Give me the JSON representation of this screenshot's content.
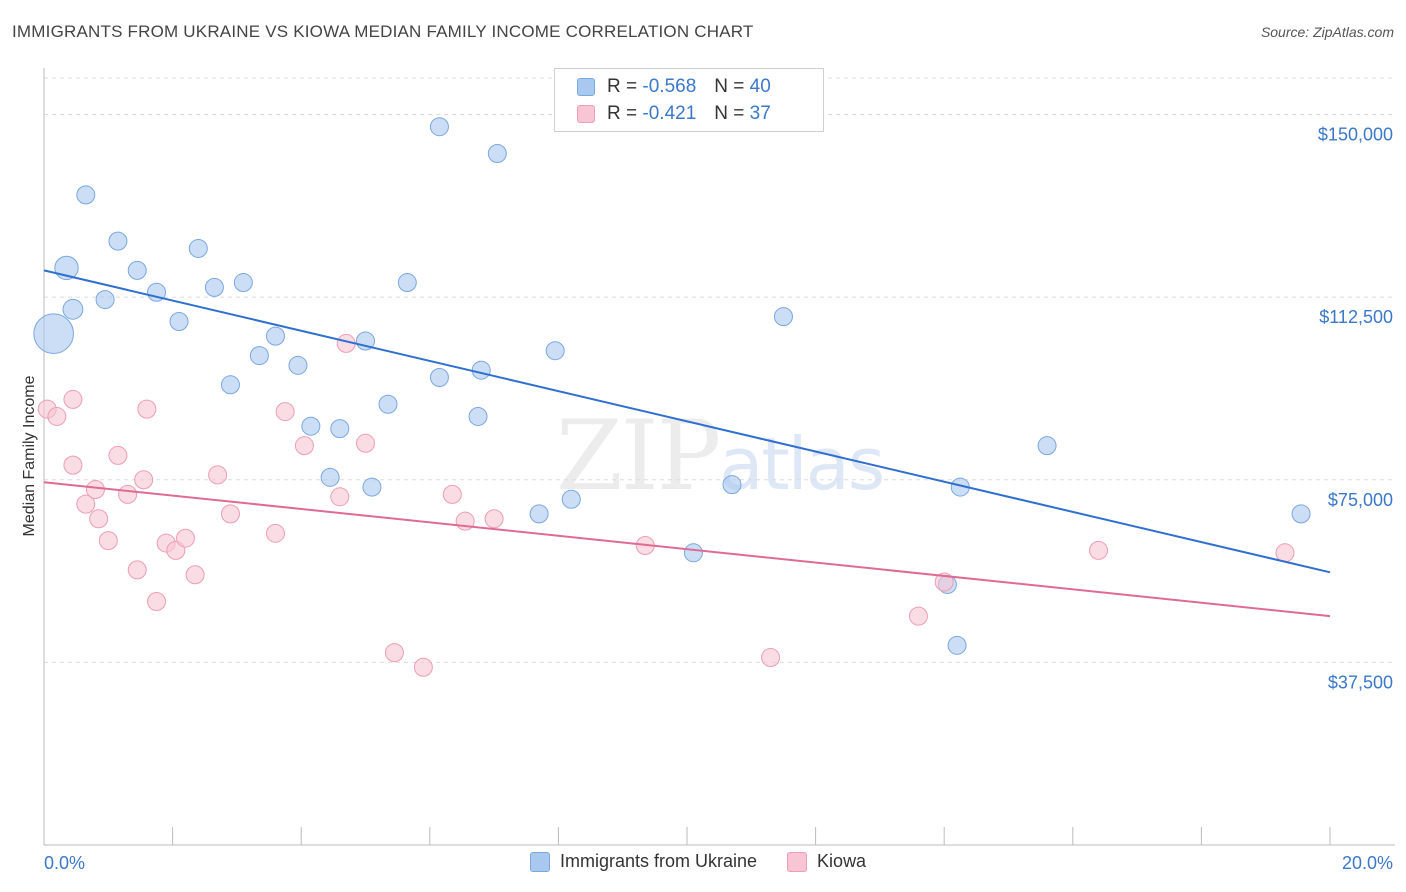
{
  "title": "IMMIGRANTS FROM UKRAINE VS KIOWA MEDIAN FAMILY INCOME CORRELATION CHART",
  "source": "Source: ZipAtlas.com",
  "watermark": {
    "zip": "ZIP",
    "atlas": "atlas"
  },
  "legend": {
    "rows": [
      {
        "r_label": "R =",
        "r_value": "-0.568",
        "n_label": "N =",
        "n_value": "40",
        "color": "#a9c8f0",
        "border": "#7aa7e0"
      },
      {
        "r_label": "R =",
        "r_value": "-0.421",
        "n_label": "N =",
        "n_value": "37",
        "color": "#f7c5d3",
        "border": "#ee9db5"
      }
    ]
  },
  "bottom_legend": [
    {
      "label": "Immigrants from Ukraine",
      "color": "#a9c8f0",
      "border": "#7aa7e0"
    },
    {
      "label": "Kiowa",
      "color": "#f7c5d3",
      "border": "#ee9db5"
    }
  ],
  "chart_data": {
    "type": "scatter",
    "title": "IMMIGRANTS FROM UKRAINE VS KIOWA MEDIAN FAMILY INCOME CORRELATION CHART",
    "xlabel": "",
    "ylabel": "Median Family Income",
    "xlim": [
      0.0,
      20.0
    ],
    "ylim": [
      0,
      157500
    ],
    "x_tick_labels": [
      "0.0%",
      "20.0%"
    ],
    "y_ticks": [
      37500,
      75000,
      112500,
      150000
    ],
    "y_tick_labels": [
      "$37,500",
      "$75,000",
      "$112,500",
      "$150,000"
    ],
    "grid": true,
    "series": [
      {
        "name": "Immigrants from Ukraine",
        "color": "#a9c8f0",
        "stroke": "#7aa7e0",
        "line_color": "#2f6fd0",
        "trend": {
          "x": [
            0.0,
            20.0
          ],
          "y": [
            118000,
            56000
          ]
        },
        "points": [
          {
            "x": 0.15,
            "y": 105000,
            "s": 2.2
          },
          {
            "x": 0.35,
            "y": 118500,
            "s": 1.3
          },
          {
            "x": 0.65,
            "y": 133500,
            "s": 1.0
          },
          {
            "x": 0.45,
            "y": 110000,
            "s": 1.1
          },
          {
            "x": 1.15,
            "y": 124000,
            "s": 1.0
          },
          {
            "x": 1.45,
            "y": 118000,
            "s": 1.0
          },
          {
            "x": 0.95,
            "y": 112000,
            "s": 1.0
          },
          {
            "x": 1.75,
            "y": 113500,
            "s": 1.0
          },
          {
            "x": 2.4,
            "y": 122500,
            "s": 1.0
          },
          {
            "x": 2.1,
            "y": 107500,
            "s": 1.0
          },
          {
            "x": 2.65,
            "y": 114500,
            "s": 1.0
          },
          {
            "x": 3.1,
            "y": 115500,
            "s": 1.0
          },
          {
            "x": 2.9,
            "y": 94500,
            "s": 1.0
          },
          {
            "x": 3.35,
            "y": 100500,
            "s": 1.0
          },
          {
            "x": 3.6,
            "y": 104500,
            "s": 1.0
          },
          {
            "x": 3.95,
            "y": 98500,
            "s": 1.0
          },
          {
            "x": 4.15,
            "y": 86000,
            "s": 1.0
          },
          {
            "x": 4.45,
            "y": 75500,
            "s": 1.0
          },
          {
            "x": 4.6,
            "y": 85500,
            "s": 1.0
          },
          {
            "x": 5.0,
            "y": 103500,
            "s": 1.0
          },
          {
            "x": 5.35,
            "y": 90500,
            "s": 1.0
          },
          {
            "x": 5.1,
            "y": 73500,
            "s": 1.0
          },
          {
            "x": 5.65,
            "y": 115500,
            "s": 1.0
          },
          {
            "x": 6.15,
            "y": 96000,
            "s": 1.0
          },
          {
            "x": 6.8,
            "y": 97500,
            "s": 1.0
          },
          {
            "x": 6.75,
            "y": 88000,
            "s": 1.0
          },
          {
            "x": 6.15,
            "y": 147500,
            "s": 1.0
          },
          {
            "x": 7.05,
            "y": 142000,
            "s": 1.0
          },
          {
            "x": 7.7,
            "y": 68000,
            "s": 1.0
          },
          {
            "x": 7.95,
            "y": 101500,
            "s": 1.0
          },
          {
            "x": 8.2,
            "y": 71000,
            "s": 1.0
          },
          {
            "x": 10.1,
            "y": 60000,
            "s": 1.0
          },
          {
            "x": 10.7,
            "y": 74000,
            "s": 1.0
          },
          {
            "x": 11.5,
            "y": 108500,
            "s": 1.0
          },
          {
            "x": 14.05,
            "y": 53500,
            "s": 1.0
          },
          {
            "x": 14.25,
            "y": 73500,
            "s": 1.0
          },
          {
            "x": 14.2,
            "y": 41000,
            "s": 1.0
          },
          {
            "x": 15.6,
            "y": 82000,
            "s": 1.0
          },
          {
            "x": 19.55,
            "y": 68000,
            "s": 1.0
          },
          {
            "x": 19.5,
            "y": 68000,
            "s": 0.0
          }
        ]
      },
      {
        "name": "Kiowa",
        "color": "#f7c5d3",
        "stroke": "#ee9db5",
        "line_color": "#e06b92",
        "trend": {
          "x": [
            0.0,
            20.0
          ],
          "y": [
            74500,
            47000
          ]
        },
        "points": [
          {
            "x": 0.05,
            "y": 89500,
            "s": 1.0
          },
          {
            "x": 0.2,
            "y": 88000,
            "s": 1.0
          },
          {
            "x": 0.45,
            "y": 78000,
            "s": 1.0
          },
          {
            "x": 0.45,
            "y": 91500,
            "s": 1.0
          },
          {
            "x": 0.65,
            "y": 70000,
            "s": 1.0
          },
          {
            "x": 0.8,
            "y": 73000,
            "s": 1.0
          },
          {
            "x": 0.85,
            "y": 67000,
            "s": 1.0
          },
          {
            "x": 1.0,
            "y": 62500,
            "s": 1.0
          },
          {
            "x": 1.15,
            "y": 80000,
            "s": 1.0
          },
          {
            "x": 1.3,
            "y": 72000,
            "s": 1.0
          },
          {
            "x": 1.45,
            "y": 56500,
            "s": 1.0
          },
          {
            "x": 1.55,
            "y": 75000,
            "s": 1.0
          },
          {
            "x": 1.6,
            "y": 89500,
            "s": 1.0
          },
          {
            "x": 1.75,
            "y": 50000,
            "s": 1.0
          },
          {
            "x": 1.9,
            "y": 62000,
            "s": 1.0
          },
          {
            "x": 2.05,
            "y": 60500,
            "s": 1.0
          },
          {
            "x": 2.2,
            "y": 63000,
            "s": 1.0
          },
          {
            "x": 2.35,
            "y": 55500,
            "s": 1.0
          },
          {
            "x": 2.7,
            "y": 76000,
            "s": 1.0
          },
          {
            "x": 2.9,
            "y": 68000,
            "s": 1.0
          },
          {
            "x": 3.6,
            "y": 64000,
            "s": 1.0
          },
          {
            "x": 3.75,
            "y": 89000,
            "s": 1.0
          },
          {
            "x": 4.05,
            "y": 82000,
            "s": 1.0
          },
          {
            "x": 4.6,
            "y": 71500,
            "s": 1.0
          },
          {
            "x": 4.7,
            "y": 103000,
            "s": 1.0
          },
          {
            "x": 5.0,
            "y": 82500,
            "s": 1.0
          },
          {
            "x": 5.45,
            "y": 39500,
            "s": 1.0
          },
          {
            "x": 5.9,
            "y": 36500,
            "s": 1.0
          },
          {
            "x": 6.35,
            "y": 72000,
            "s": 1.0
          },
          {
            "x": 6.55,
            "y": 66500,
            "s": 1.0
          },
          {
            "x": 7.0,
            "y": 67000,
            "s": 1.0
          },
          {
            "x": 9.35,
            "y": 61500,
            "s": 1.0
          },
          {
            "x": 11.3,
            "y": 38500,
            "s": 1.0
          },
          {
            "x": 13.6,
            "y": 47000,
            "s": 1.0
          },
          {
            "x": 14.0,
            "y": 54000,
            "s": 1.0
          },
          {
            "x": 16.4,
            "y": 60500,
            "s": 1.0
          },
          {
            "x": 19.3,
            "y": 60000,
            "s": 1.0
          }
        ]
      }
    ]
  }
}
